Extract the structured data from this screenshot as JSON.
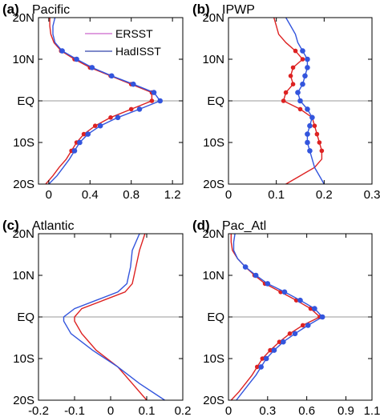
{
  "legend": [
    {
      "label": "ERSST",
      "color": "#cc66cc"
    },
    {
      "label": "HadISST",
      "color": "#3344aa"
    }
  ],
  "colors": {
    "series_a": "#dd2222",
    "series_b": "#3355dd",
    "equator_line": "#999999"
  },
  "chart_data": [
    {
      "type": "line",
      "panel_label": "(a)",
      "title": "Pacific",
      "orientation": "vertical",
      "y_tick_labels": [
        "20N",
        "10N",
        "EQ",
        "10S",
        "20S"
      ],
      "y_ticks": [
        20,
        10,
        0,
        -10,
        -20
      ],
      "ylim": [
        -20,
        20
      ],
      "xlim": [
        -0.1,
        1.3
      ],
      "x_ticks": [
        0,
        0.4,
        0.8,
        1.2
      ],
      "x_tick_labels": [
        "0",
        "0.4",
        "0.8",
        "1.2"
      ],
      "grid": false,
      "legend_position": "top-right",
      "series": [
        {
          "color": "red",
          "markers": true,
          "points": [
            [
              -0.03,
              -20
            ],
            [
              0.04,
              -18
            ],
            [
              0.1,
              -16
            ],
            [
              0.17,
              -14
            ],
            [
              0.22,
              -12
            ],
            [
              0.27,
              -10
            ],
            [
              0.34,
              -8
            ],
            [
              0.45,
              -6
            ],
            [
              0.6,
              -4
            ],
            [
              0.8,
              -2
            ],
            [
              1.0,
              0
            ],
            [
              1.0,
              2
            ],
            [
              0.8,
              4
            ],
            [
              0.6,
              6
            ],
            [
              0.4,
              8
            ],
            [
              0.25,
              10
            ],
            [
              0.12,
              12
            ],
            [
              0.05,
              14
            ],
            [
              0.02,
              16
            ],
            [
              0.01,
              18
            ],
            [
              0.01,
              20
            ]
          ]
        },
        {
          "color": "blue",
          "markers": true,
          "points": [
            [
              0.0,
              -20
            ],
            [
              0.08,
              -18
            ],
            [
              0.14,
              -16
            ],
            [
              0.2,
              -14
            ],
            [
              0.25,
              -12
            ],
            [
              0.3,
              -10
            ],
            [
              0.38,
              -8
            ],
            [
              0.5,
              -6
            ],
            [
              0.67,
              -4
            ],
            [
              0.88,
              -2
            ],
            [
              1.08,
              0
            ],
            [
              1.02,
              2
            ],
            [
              0.82,
              4
            ],
            [
              0.61,
              6
            ],
            [
              0.42,
              8
            ],
            [
              0.27,
              10
            ],
            [
              0.13,
              12
            ],
            [
              0.06,
              14
            ],
            [
              0.04,
              16
            ],
            [
              0.04,
              18
            ],
            [
              0.06,
              20
            ]
          ]
        }
      ]
    },
    {
      "type": "line",
      "panel_label": "(b)",
      "title": "IPWP",
      "orientation": "vertical",
      "y_tick_labels": [
        "20N",
        "10N",
        "EQ",
        "10S",
        "20S"
      ],
      "y_ticks": [
        20,
        10,
        0,
        -10,
        -20
      ],
      "ylim": [
        -20,
        20
      ],
      "xlim": [
        0,
        0.3
      ],
      "x_ticks": [
        0,
        0.1,
        0.2,
        0.3
      ],
      "x_tick_labels": [
        "0",
        "0.1",
        "0.2",
        "0.3"
      ],
      "grid": false,
      "series": [
        {
          "color": "red",
          "markers": true,
          "points": [
            [
              0.12,
              -20
            ],
            [
              0.15,
              -18
            ],
            [
              0.18,
              -16
            ],
            [
              0.195,
              -14
            ],
            [
              0.195,
              -12
            ],
            [
              0.19,
              -10
            ],
            [
              0.185,
              -8
            ],
            [
              0.18,
              -6
            ],
            [
              0.175,
              -4
            ],
            [
              0.15,
              -2
            ],
            [
              0.115,
              0
            ],
            [
              0.12,
              2
            ],
            [
              0.135,
              4
            ],
            [
              0.13,
              6
            ],
            [
              0.135,
              8
            ],
            [
              0.155,
              10
            ],
            [
              0.14,
              12
            ],
            [
              0.12,
              14
            ],
            [
              0.105,
              16
            ],
            [
              0.1,
              18
            ],
            [
              0.095,
              20
            ]
          ]
        },
        {
          "color": "blue",
          "markers": true,
          "points": [
            [
              0.2,
              -20
            ],
            [
              0.19,
              -18
            ],
            [
              0.18,
              -16
            ],
            [
              0.175,
              -14
            ],
            [
              0.17,
              -12
            ],
            [
              0.165,
              -10
            ],
            [
              0.165,
              -8
            ],
            [
              0.17,
              -6
            ],
            [
              0.175,
              -4
            ],
            [
              0.165,
              -2
            ],
            [
              0.15,
              0
            ],
            [
              0.145,
              2
            ],
            [
              0.155,
              4
            ],
            [
              0.16,
              6
            ],
            [
              0.165,
              8
            ],
            [
              0.165,
              10
            ],
            [
              0.155,
              12
            ],
            [
              0.145,
              14
            ],
            [
              0.14,
              16
            ],
            [
              0.13,
              18
            ],
            [
              0.12,
              20
            ]
          ]
        }
      ]
    },
    {
      "type": "line",
      "panel_label": "(c)",
      "title": "Atlantic",
      "orientation": "vertical",
      "y_tick_labels": [
        "20N",
        "10N",
        "EQ",
        "10S",
        "20S"
      ],
      "y_ticks": [
        20,
        10,
        0,
        -10,
        -20
      ],
      "ylim": [
        -20,
        20
      ],
      "xlim": [
        -0.2,
        0.2
      ],
      "x_ticks": [
        -0.2,
        -0.1,
        0,
        0.1,
        0.2
      ],
      "x_tick_labels": [
        "-0.2",
        "-0.1",
        "0",
        "0.1",
        "0.2"
      ],
      "grid": false,
      "series": [
        {
          "color": "red",
          "markers": false,
          "points": [
            [
              0.1,
              -20
            ],
            [
              0.06,
              -16
            ],
            [
              0.02,
              -12
            ],
            [
              -0.04,
              -8
            ],
            [
              -0.08,
              -4
            ],
            [
              -0.1,
              -1
            ],
            [
              -0.1,
              0
            ],
            [
              -0.08,
              2
            ],
            [
              -0.02,
              4
            ],
            [
              0.04,
              6
            ],
            [
              0.06,
              8
            ],
            [
              0.065,
              10
            ],
            [
              0.07,
              12
            ],
            [
              0.08,
              16
            ],
            [
              0.095,
              20
            ]
          ]
        },
        {
          "color": "blue",
          "markers": false,
          "points": [
            [
              0.15,
              -20
            ],
            [
              0.08,
              -16
            ],
            [
              0.02,
              -12
            ],
            [
              -0.05,
              -8
            ],
            [
              -0.11,
              -4
            ],
            [
              -0.13,
              -1
            ],
            [
              -0.13,
              0
            ],
            [
              -0.1,
              2
            ],
            [
              -0.04,
              4
            ],
            [
              0.02,
              6
            ],
            [
              0.045,
              8
            ],
            [
              0.05,
              10
            ],
            [
              0.055,
              12
            ],
            [
              0.06,
              16
            ],
            [
              0.08,
              20
            ]
          ]
        }
      ]
    },
    {
      "type": "line",
      "panel_label": "(d)",
      "title": "Pac_Atl",
      "orientation": "vertical",
      "y_tick_labels": [
        "20N",
        "10N",
        "EQ",
        "10S",
        "20S"
      ],
      "y_ticks": [
        20,
        10,
        0,
        -10,
        -20
      ],
      "ylim": [
        -20,
        20
      ],
      "xlim": [
        0,
        1.1
      ],
      "x_ticks": [
        0,
        0.3,
        0.6,
        0.9,
        1.1
      ],
      "x_tick_labels": [
        "0",
        "0.3",
        "0.6",
        "0.9",
        "1.1"
      ],
      "grid": false,
      "series": [
        {
          "color": "red",
          "markers": true,
          "points": [
            [
              0.02,
              -20
            ],
            [
              0.08,
              -18
            ],
            [
              0.13,
              -16
            ],
            [
              0.18,
              -14
            ],
            [
              0.22,
              -12
            ],
            [
              0.26,
              -10
            ],
            [
              0.32,
              -8
            ],
            [
              0.39,
              -6
            ],
            [
              0.47,
              -4
            ],
            [
              0.57,
              -2
            ],
            [
              0.7,
              0
            ],
            [
              0.63,
              2
            ],
            [
              0.52,
              4
            ],
            [
              0.4,
              6
            ],
            [
              0.28,
              8
            ],
            [
              0.2,
              10
            ],
            [
              0.13,
              12
            ],
            [
              0.07,
              14
            ],
            [
              0.03,
              16
            ],
            [
              0.02,
              18
            ],
            [
              0.02,
              20
            ]
          ]
        },
        {
          "color": "blue",
          "markers": true,
          "points": [
            [
              0.06,
              -20
            ],
            [
              0.11,
              -18
            ],
            [
              0.16,
              -16
            ],
            [
              0.21,
              -14
            ],
            [
              0.25,
              -12
            ],
            [
              0.29,
              -10
            ],
            [
              0.35,
              -8
            ],
            [
              0.42,
              -6
            ],
            [
              0.51,
              -4
            ],
            [
              0.61,
              -2
            ],
            [
              0.72,
              0
            ],
            [
              0.66,
              2
            ],
            [
              0.55,
              4
            ],
            [
              0.43,
              6
            ],
            [
              0.3,
              8
            ],
            [
              0.21,
              10
            ],
            [
              0.13,
              12
            ],
            [
              0.07,
              14
            ],
            [
              0.04,
              16
            ],
            [
              0.04,
              18
            ],
            [
              0.05,
              20
            ]
          ]
        }
      ]
    }
  ]
}
